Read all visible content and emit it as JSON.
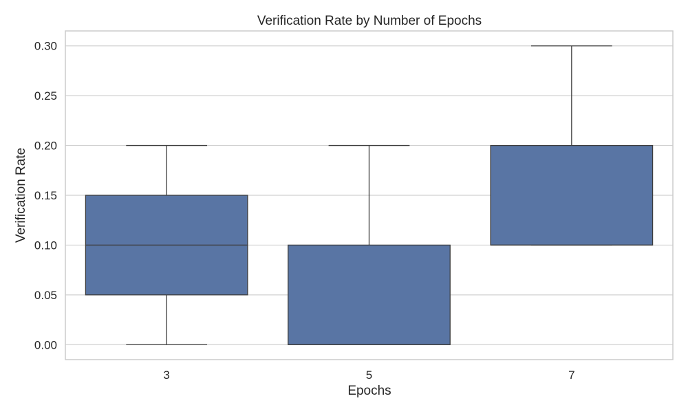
{
  "chart_data": {
    "type": "box",
    "title": "Verification Rate by Number of Epochs",
    "xlabel": "Epochs",
    "ylabel": "Verification Rate",
    "categories": [
      "3",
      "5",
      "7"
    ],
    "boxes": [
      {
        "category": "3",
        "whisker_low": 0.0,
        "q1": 0.05,
        "median": 0.1,
        "q3": 0.15,
        "whisker_high": 0.2
      },
      {
        "category": "5",
        "whisker_low": 0.0,
        "q1": 0.0,
        "median": 0.0,
        "q3": 0.1,
        "whisker_high": 0.2
      },
      {
        "category": "7",
        "whisker_low": 0.1,
        "q1": 0.1,
        "median": 0.1,
        "q3": 0.2,
        "whisker_high": 0.3
      }
    ],
    "yticks": [
      0.0,
      0.05,
      0.1,
      0.15,
      0.2,
      0.25,
      0.3
    ],
    "ytick_labels": [
      "0.00",
      "0.05",
      "0.10",
      "0.15",
      "0.20",
      "0.25",
      "0.30"
    ],
    "ylim": [
      -0.015,
      0.315
    ],
    "grid": true,
    "colors": {
      "box_fill": "#5975a4",
      "line": "#3d3d3d",
      "grid": "#d0d0d0",
      "frame": "#cccccc"
    }
  }
}
